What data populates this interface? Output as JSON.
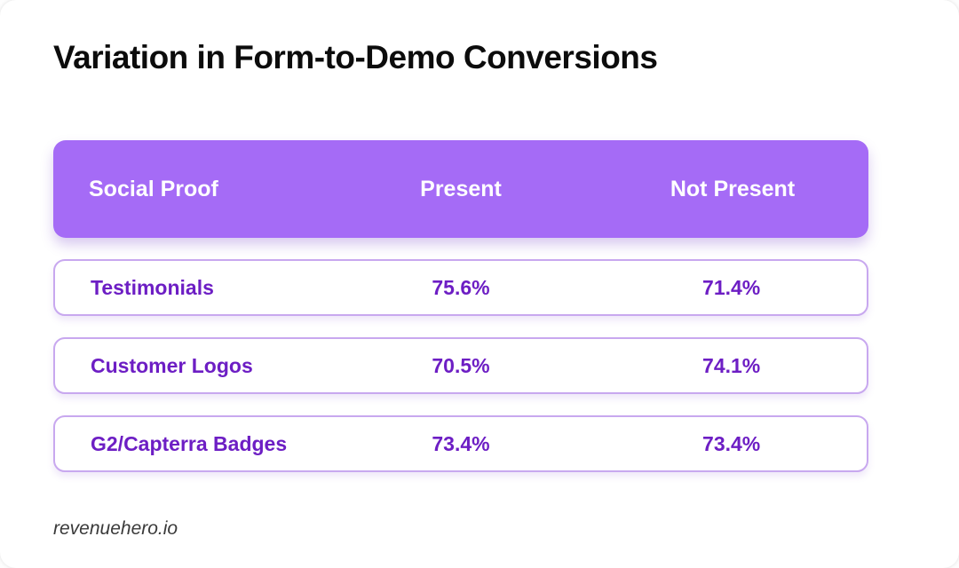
{
  "page": {
    "title": "Variation in Form-to-Demo Conversions",
    "footer_brand": "revenuehero.io"
  },
  "colors": {
    "header_bg": "#a56bf6",
    "row_border": "#c8a8ef",
    "row_text": "#6d1ec4",
    "title_text": "#0c0c0c",
    "footer_text": "#3a3a3a",
    "card_bg": "#ffffff"
  },
  "chart_data": {
    "type": "table",
    "title": "Variation in Form-to-Demo Conversions",
    "columns": [
      "Social Proof",
      "Present",
      "Not Present"
    ],
    "rows": [
      [
        "Testimonials",
        "75.6%",
        "71.4%"
      ],
      [
        "Customer Logos",
        "70.5%",
        "74.1%"
      ],
      [
        "G2/Capterra Badges",
        "73.4%",
        "73.4%"
      ]
    ],
    "value_unit": "percent_conversion_rate",
    "numeric_values": {
      "Testimonials": {
        "present": 75.6,
        "not_present": 71.4
      },
      "Customer Logos": {
        "present": 70.5,
        "not_present": 74.1
      },
      "G2/Capterra Badges": {
        "present": 73.4,
        "not_present": 73.4
      }
    },
    "layout_hints": {
      "header_style": "purple-rounded-bar",
      "row_style": "white-pill-purple-border",
      "column_alignment": [
        "left",
        "center",
        "center"
      ]
    }
  }
}
